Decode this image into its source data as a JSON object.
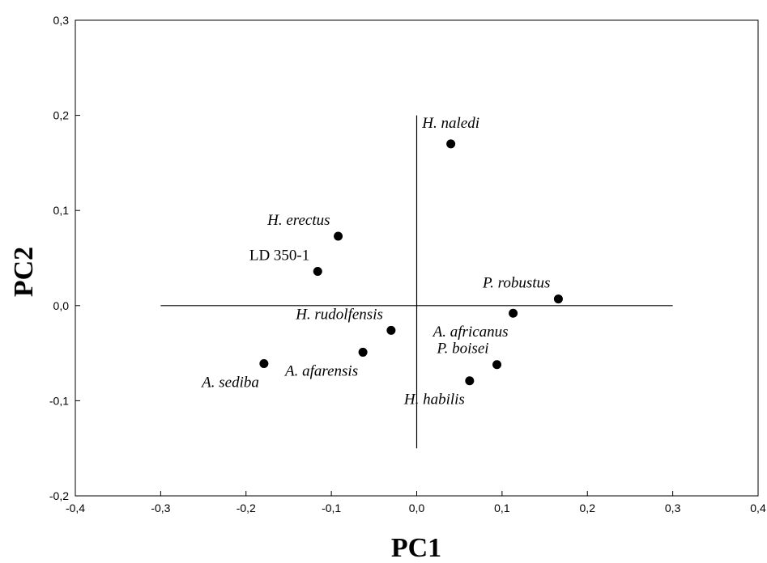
{
  "chart_data": {
    "type": "scatter",
    "title": "",
    "xlabel": "PC1",
    "ylabel": "PC2",
    "xlim": [
      -0.4,
      0.4
    ],
    "ylim": [
      -0.2,
      0.3
    ],
    "x_ticks": [
      "-0,4",
      "-0,3",
      "-0,2",
      "-0,1",
      "0,0",
      "0,1",
      "0,2",
      "0,3",
      "0,4"
    ],
    "y_ticks": [
      "-0,2",
      "-0,1",
      "0,0",
      "0,1",
      "0,2",
      "0,3"
    ],
    "grid": false,
    "reference_lines": {
      "horizontal": {
        "y": 0.0,
        "x_from": -0.3,
        "x_to": 0.3
      },
      "vertical": {
        "x": 0.0,
        "y_from": -0.15,
        "y_to": 0.2
      }
    },
    "points": [
      {
        "label": "H. naledi",
        "x": 0.04,
        "y": 0.17,
        "italic": true,
        "pos": "above"
      },
      {
        "label": "H. erectus",
        "x": -0.092,
        "y": 0.073,
        "italic": true,
        "pos": "above-left"
      },
      {
        "label": "LD 350-1",
        "x": -0.116,
        "y": 0.036,
        "italic": false,
        "pos": "above-left"
      },
      {
        "label": "P. robustus",
        "x": 0.166,
        "y": 0.007,
        "italic": true,
        "pos": "above-left"
      },
      {
        "label": "A. africanus",
        "x": 0.113,
        "y": -0.008,
        "italic": true,
        "pos": "below-left"
      },
      {
        "label": "H. rudolfensis",
        "x": -0.03,
        "y": -0.026,
        "italic": true,
        "pos": "above-left"
      },
      {
        "label": "A. afarensis",
        "x": -0.063,
        "y": -0.049,
        "italic": true,
        "pos": "below-left"
      },
      {
        "label": "A. sediba",
        "x": -0.179,
        "y": -0.061,
        "italic": true,
        "pos": "below-left"
      },
      {
        "label": "P. boisei",
        "x": 0.094,
        "y": -0.062,
        "italic": true,
        "pos": "above-left"
      },
      {
        "label": "H. habilis",
        "x": 0.062,
        "y": -0.079,
        "italic": true,
        "pos": "below-left"
      }
    ]
  }
}
